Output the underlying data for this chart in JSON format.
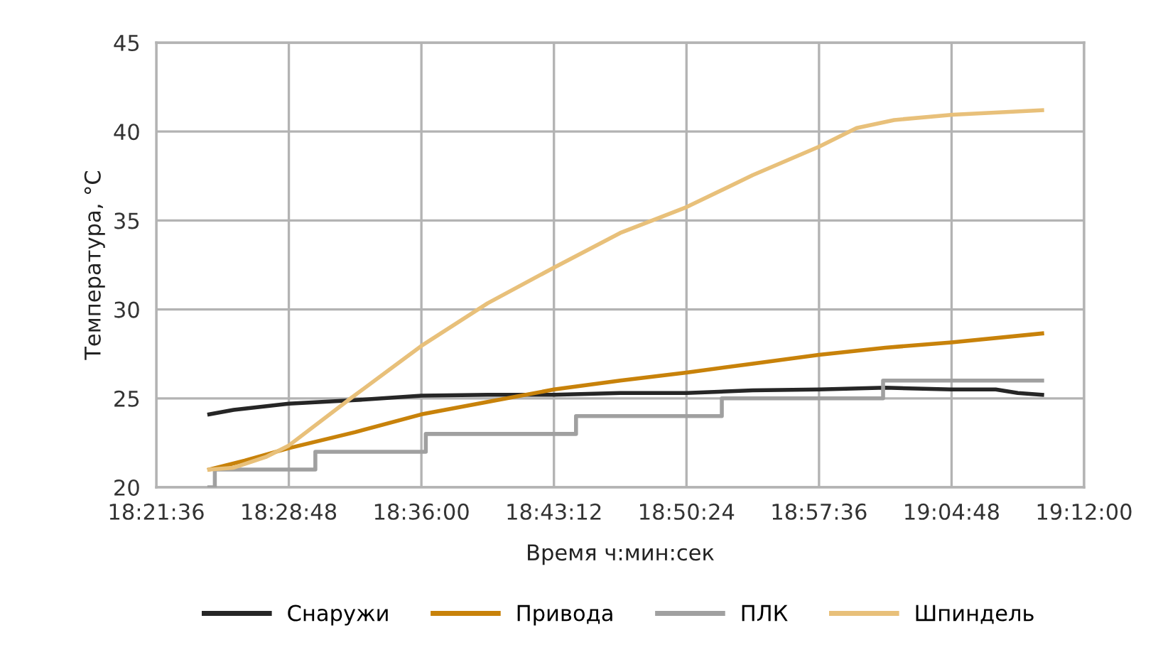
{
  "chart_data": {
    "type": "line",
    "xlabel": "Время ч:мин:сек",
    "ylabel": "Температура, °C",
    "xlim": [
      18.36,
      19.2
    ],
    "xticks": [
      {
        "value": 18.36,
        "label": "18:21:36"
      },
      {
        "value": 18.48,
        "label": "18:28:48"
      },
      {
        "value": 18.6,
        "label": "18:36:00"
      },
      {
        "value": 18.72,
        "label": "18:43:12"
      },
      {
        "value": 18.84,
        "label": "18:50:24"
      },
      {
        "value": 18.96,
        "label": "18:57:36"
      },
      {
        "value": 19.08,
        "label": "19:04:48"
      },
      {
        "value": 19.2,
        "label": "19:12:00"
      }
    ],
    "ylim": [
      20,
      45
    ],
    "yticks": [
      20,
      25,
      30,
      35,
      40,
      45
    ],
    "grid": true,
    "legend": "bottom",
    "marker": "none",
    "line_style": "solid",
    "series": [
      {
        "name": "Снаружи",
        "color": "#262626",
        "x": [
          18.408,
          18.43,
          18.48,
          18.54,
          18.6,
          18.66,
          18.72,
          18.78,
          18.84,
          18.9,
          18.96,
          19.02,
          19.08,
          19.12,
          19.14,
          19.162
        ],
        "values": [
          24.1,
          24.35,
          24.7,
          24.9,
          25.15,
          25.2,
          25.2,
          25.3,
          25.3,
          25.45,
          25.5,
          25.6,
          25.5,
          25.5,
          25.3,
          25.2
        ]
      },
      {
        "name": "Привода",
        "color": "#c8820a",
        "x": [
          18.408,
          18.44,
          18.48,
          18.54,
          18.6,
          18.66,
          18.72,
          18.78,
          18.84,
          18.9,
          18.96,
          19.02,
          19.08,
          19.162
        ],
        "values": [
          21.0,
          21.5,
          22.2,
          23.1,
          24.1,
          24.8,
          25.5,
          26.0,
          26.45,
          26.95,
          27.45,
          27.85,
          28.15,
          28.65
        ]
      },
      {
        "name": "ПЛК",
        "type": "step",
        "color": "#a0a0a0",
        "x": [
          18.408,
          18.413,
          18.504,
          18.604,
          18.74,
          18.872,
          19.018,
          19.162
        ],
        "values": [
          20,
          21,
          22,
          23,
          24,
          25,
          26,
          26
        ]
      },
      {
        "name": "Шпиндель",
        "color": "#e8c07a",
        "x": [
          18.408,
          18.43,
          18.459,
          18.48,
          18.536,
          18.6,
          18.66,
          18.72,
          18.78,
          18.84,
          18.9,
          18.96,
          18.994,
          19.028,
          19.081,
          19.162
        ],
        "values": [
          21.0,
          21.1,
          21.7,
          22.35,
          25.0,
          27.95,
          30.35,
          32.35,
          34.3,
          35.75,
          37.55,
          39.15,
          40.2,
          40.65,
          40.95,
          41.2
        ]
      }
    ]
  }
}
